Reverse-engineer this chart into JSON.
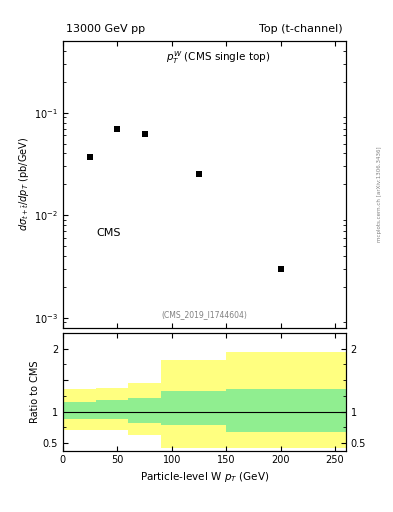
{
  "title_left": "13000 GeV pp",
  "title_right": "Top (t-channel)",
  "annotation": "$p_T^W$ (CMS single top)",
  "cms_label": "CMS",
  "ref_label": "(CMS_2019_I1744604)",
  "right_label": "mcplots.cern.ch [arXiv:1306.3436]",
  "xlabel": "Particle-level W $p_T$ (GeV)",
  "ylabel": "$d\\sigma_{t+\\bar{t}}/dp_T$ (pb/GeV)",
  "ylabel_ratio": "Ratio to CMS",
  "cms_points_x": [
    25,
    50,
    75,
    125,
    200
  ],
  "cms_points_y": [
    0.037,
    0.07,
    0.062,
    0.025,
    0.003
  ],
  "xlim": [
    0,
    260
  ],
  "ylim_log": [
    0.0008,
    0.5
  ],
  "ylim_ratio": [
    0.38,
    2.25
  ],
  "ratio_bin_edges": [
    0,
    30,
    60,
    90,
    150,
    260
  ],
  "ratio_green_lo": [
    0.88,
    0.88,
    0.82,
    0.78,
    0.67
  ],
  "ratio_green_hi": [
    1.15,
    1.18,
    1.22,
    1.33,
    1.35
  ],
  "ratio_yellow_lo": [
    0.7,
    0.7,
    0.63,
    0.42,
    0.42
  ],
  "ratio_yellow_hi": [
    1.35,
    1.38,
    1.45,
    1.82,
    1.95
  ],
  "ratio_line": 1.0,
  "marker_color": "black",
  "marker_size": 5,
  "green_color": "#90EE90",
  "yellow_color": "#FFFF80",
  "bg_color": "#ffffff"
}
